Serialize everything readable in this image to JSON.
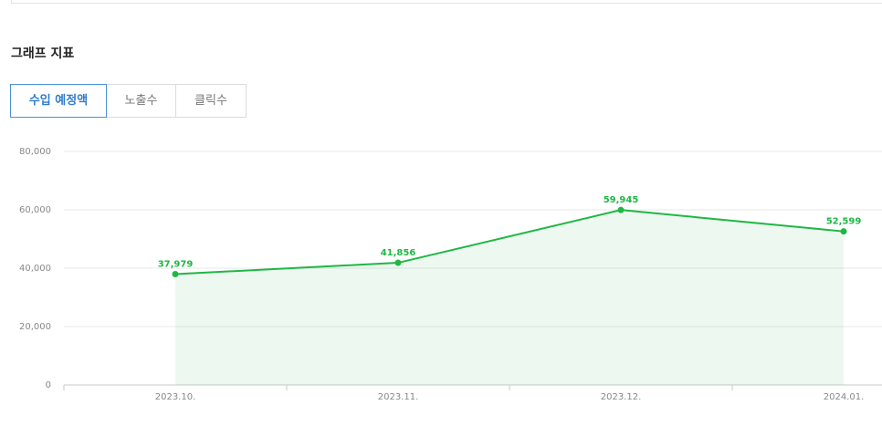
{
  "header": {
    "title": "그래프 지표"
  },
  "tabs": [
    "수입 예정액",
    "노출수",
    "클릭수"
  ],
  "chart_data": {
    "type": "line",
    "categories": [
      "2023.10.",
      "2023.11.",
      "2023.12.",
      "2024.01."
    ],
    "series": [
      {
        "name": "수입 예정액",
        "color": "#1fb744",
        "values": [
          37979,
          41856,
          59945,
          52599
        ],
        "value_labels": [
          "37,979",
          "41,856",
          "59,945",
          "52,599"
        ]
      }
    ],
    "ylim": [
      0,
      80000
    ],
    "yticks": [
      0,
      {
        "value": 20000,
        "label": "20,000"
      },
      {
        "value": 40000,
        "label": "40,000"
      },
      {
        "value": 60000,
        "label": "60,000"
      },
      {
        "value": 80000,
        "label": "80,000"
      }
    ],
    "grid": true,
    "area": true
  }
}
